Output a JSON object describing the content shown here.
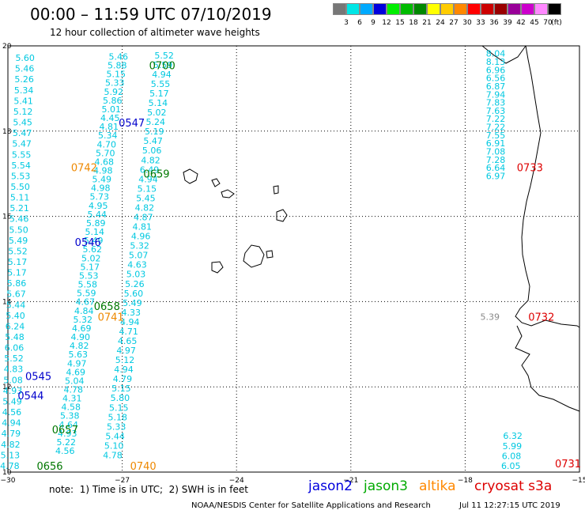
{
  "header": {
    "title": "00:00 – 11:59 UTC 07/10/2019",
    "subtitle": "12 hour collection of altimeter wave heights"
  },
  "legend": {
    "unit": "(ft)",
    "bins": [
      {
        "label": "3",
        "color": "#777777"
      },
      {
        "label": "6",
        "color": "#00e6e6"
      },
      {
        "label": "9",
        "color": "#00aaff"
      },
      {
        "label": "12",
        "color": "#0000dd"
      },
      {
        "label": "15",
        "color": "#00ee00"
      },
      {
        "label": "18",
        "color": "#00bb00"
      },
      {
        "label": "21",
        "color": "#008800"
      },
      {
        "label": "24",
        "color": "#ffff00"
      },
      {
        "label": "27",
        "color": "#ffcc00"
      },
      {
        "label": "30",
        "color": "#ff8800"
      },
      {
        "label": "33",
        "color": "#ff0000"
      },
      {
        "label": "36",
        "color": "#cc0000"
      },
      {
        "label": "39",
        "color": "#990000"
      },
      {
        "label": "42",
        "color": "#990099"
      },
      {
        "label": "45",
        "color": "#cc00cc"
      },
      {
        "label": "70",
        "color": "#ff88ff"
      },
      {
        "label": "",
        "color": "#000000"
      }
    ]
  },
  "axes": {
    "lat_labels": [
      "20",
      "18",
      "16",
      "14",
      "12",
      "10"
    ],
    "lon_labels": [
      "−30",
      "−27",
      "−24",
      "−21",
      "−18",
      "−15"
    ]
  },
  "colors": {
    "wave_cyan": "#00c8e0",
    "pass_jason2": "#0000cc",
    "pass_jason3": "#007700",
    "pass_altika": "#ee8800",
    "pass_s3a": "#dd0000",
    "gray_value": "#888888",
    "coast": "#000000",
    "grid": "#000000"
  },
  "tracks": {
    "track_a": {
      "lon": [
        -29.55,
        -29.95
      ],
      "values": [
        "5.60",
        "5.46",
        "5.26",
        "5.34",
        "5.41",
        "5.12",
        "5.45",
        "5.47",
        "5.47",
        "5.55",
        "5.54",
        "5.53",
        "5.50",
        "5.11",
        "5.21",
        "5.46",
        "5.50",
        "5.49",
        "5.52",
        "5.17",
        "5.17",
        "5.86",
        "5.67",
        "5.44",
        "5.40",
        "6.24",
        "5.48",
        "6.06",
        "5.52",
        "4.83",
        "5.08",
        "4.93",
        "5.49",
        "4.56",
        "4.94",
        "4.79",
        "4.82",
        "5.13",
        "4.78"
      ]
    },
    "track_b": {
      "lon": [
        -27.1,
        -28.5
      ],
      "values": [
        "5.46",
        "5.88",
        "5.15",
        "5.33",
        "5.92",
        "5.86",
        "5.01",
        "4.45",
        "4.81",
        "5.34",
        "4.70",
        "5.70",
        "4.68",
        "4.98",
        "5.49",
        "4.98",
        "5.73",
        "4.95",
        "5.44",
        "5.89",
        "5.14",
        "5.49",
        "5.62",
        "5.02",
        "5.17",
        "5.53",
        "5.58",
        "5.59",
        "4.67",
        "4.84",
        "5.32",
        "4.69",
        "4.90",
        "4.82",
        "5.63",
        "4.97",
        "4.69",
        "5.04",
        "4.78",
        "4.31",
        "4.58",
        "5.38",
        "4.64",
        "4.93",
        "5.22",
        "4.56"
      ]
    },
    "track_c": {
      "lon": [
        -25.9,
        -27.25
      ],
      "values": [
        "5.52",
        "5.59",
        "4.94",
        "5.55",
        "5.17",
        "5.14",
        "5.02",
        "5.24",
        "5.19",
        "5.47",
        "5.06",
        "4.82",
        "6.49",
        "4.94",
        "5.15",
        "5.45",
        "4.82",
        "4.87",
        "4.81",
        "4.96",
        "5.32",
        "5.07",
        "4.63",
        "5.03",
        "5.26",
        "5.60",
        "5.49",
        "4.33",
        "4.94",
        "4.71",
        "4.65",
        "4.97",
        "5.12",
        "4.94",
        "4.79",
        "5.15",
        "5.80",
        "5.15",
        "5.18",
        "5.33",
        "5.44",
        "5.10",
        "4.78"
      ]
    },
    "track_d": {
      "lon": [
        -17.2,
        -17.2
      ],
      "values": [
        "8.04",
        "8.13",
        "6.96",
        "6.56",
        "6.87",
        "7.94",
        "7.83",
        "7.63",
        "7.22",
        "7.22",
        "7.55",
        "6.91",
        "7.08",
        "7.28",
        "6.64",
        "6.97"
      ]
    },
    "track_e": {
      "lon": [
        -16.75,
        -16.8
      ],
      "values": [
        "6.32",
        "5.99",
        "6.08",
        "6.05"
      ]
    }
  },
  "passes": [
    {
      "time": "0700",
      "lon": -25.95,
      "lat": 19.55,
      "sat": "jason3"
    },
    {
      "time": "0547",
      "lon": -26.75,
      "lat": 18.2,
      "sat": "jason2"
    },
    {
      "time": "0659",
      "lon": -26.1,
      "lat": 17.0,
      "sat": "jason3"
    },
    {
      "time": "0742",
      "lon": -28.0,
      "lat": 17.15,
      "sat": "altika"
    },
    {
      "time": "0546",
      "lon": -27.9,
      "lat": 15.4,
      "sat": "jason2"
    },
    {
      "time": "0658",
      "lon": -27.4,
      "lat": 13.9,
      "sat": "jason3"
    },
    {
      "time": "0741",
      "lon": -27.3,
      "lat": 13.65,
      "sat": "altika"
    },
    {
      "time": "0545",
      "lon": -29.2,
      "lat": 12.25,
      "sat": "jason2"
    },
    {
      "time": "0544",
      "lon": -29.4,
      "lat": 11.8,
      "sat": "jason2"
    },
    {
      "time": "0657",
      "lon": -28.5,
      "lat": 11.0,
      "sat": "jason3"
    },
    {
      "time": "0656",
      "lon": -28.9,
      "lat": 10.15,
      "sat": "jason3"
    },
    {
      "time": "0740",
      "lon": -26.45,
      "lat": 10.15,
      "sat": "altika"
    },
    {
      "time": "0733",
      "lon": -16.3,
      "lat": 17.15,
      "sat": "s3a"
    },
    {
      "time": "0732",
      "lon": -16.0,
      "lat": 13.65,
      "sat": "s3a"
    },
    {
      "time": "0731",
      "lon": -15.3,
      "lat": 10.2,
      "sat": "s3a"
    }
  ],
  "gray_values": [
    {
      "value": "5.39",
      "lon": -17.35,
      "lat": 13.65
    }
  ],
  "footer": {
    "note": "note:  1) Time is in UTC;  2) SWH is in feet",
    "sat_labels": [
      {
        "label": "jason2",
        "color": "#0000dd"
      },
      {
        "label": "jason3",
        "color": "#00aa00"
      },
      {
        "label": "altika",
        "color": "#ff8800"
      },
      {
        "label": "cryosat s3a",
        "color": "#dd0000"
      }
    ],
    "credit": "NOAA/NESDIS Center for Satellite Applications and Research",
    "timestamp": "Jul 11 12:27:15 UTC 2019"
  }
}
